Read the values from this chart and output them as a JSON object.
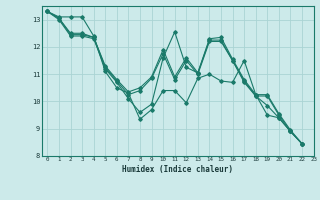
{
  "background_color": "#cceaea",
  "grid_color": "#aad4d4",
  "line_color": "#1a7a6a",
  "xlabel": "Humidex (Indice chaleur)",
  "xlim": [
    -0.5,
    23
  ],
  "ylim": [
    8,
    13.5
  ],
  "yticks": [
    8,
    9,
    10,
    11,
    12,
    13
  ],
  "xticks": [
    0,
    1,
    2,
    3,
    4,
    5,
    6,
    7,
    8,
    9,
    10,
    11,
    12,
    13,
    14,
    15,
    16,
    17,
    18,
    19,
    20,
    21,
    22,
    23
  ],
  "series": [
    [
      13.3,
      13.1,
      13.1,
      13.1,
      12.4,
      11.1,
      10.5,
      10.3,
      9.35,
      9.7,
      10.4,
      10.4,
      9.95,
      10.85,
      11.0,
      10.75,
      10.7,
      11.5,
      10.25,
      9.5,
      9.4,
      8.9,
      8.45
    ],
    [
      13.3,
      13.05,
      12.5,
      12.5,
      12.35,
      11.3,
      10.8,
      10.35,
      10.5,
      10.9,
      11.9,
      10.9,
      11.6,
      11.05,
      12.3,
      12.35,
      11.55,
      10.8,
      10.25,
      10.25,
      9.55,
      8.95,
      8.45
    ],
    [
      13.3,
      13.0,
      12.4,
      12.4,
      12.3,
      11.2,
      10.7,
      10.1,
      9.6,
      9.9,
      11.6,
      12.55,
      11.25,
      11.05,
      12.25,
      12.25,
      11.5,
      10.7,
      10.2,
      9.85,
      9.4,
      8.9,
      8.45
    ],
    [
      13.3,
      13.05,
      12.45,
      12.45,
      12.35,
      11.25,
      10.75,
      10.25,
      10.4,
      10.85,
      11.75,
      10.8,
      11.5,
      11.0,
      12.2,
      12.2,
      11.5,
      10.75,
      10.2,
      10.2,
      9.5,
      8.9,
      8.45
    ]
  ]
}
